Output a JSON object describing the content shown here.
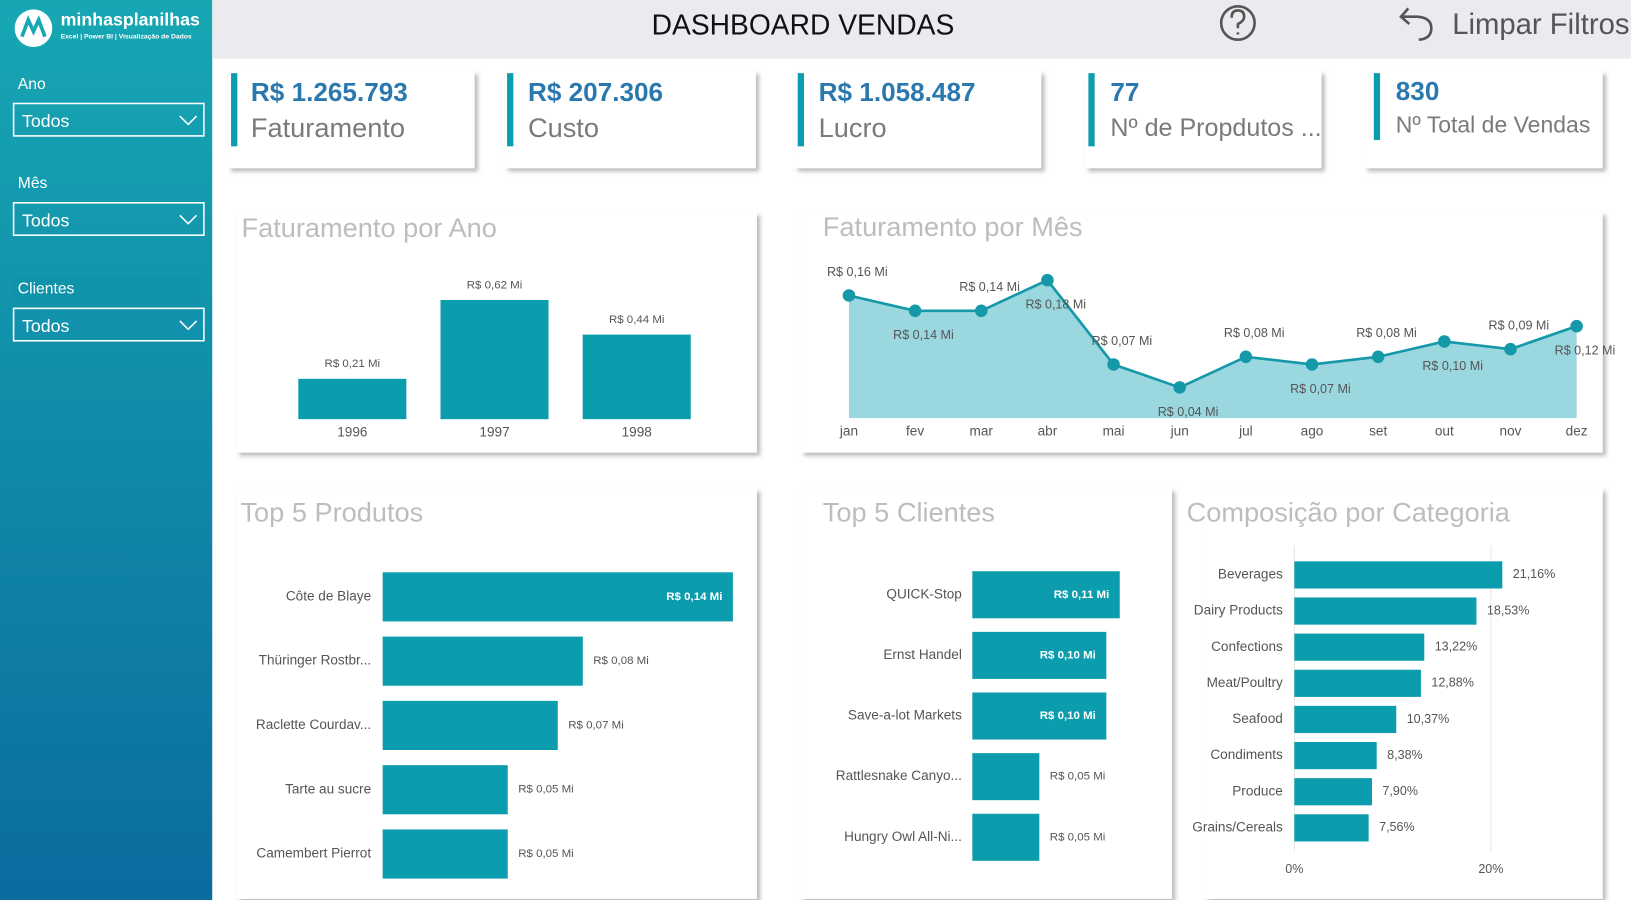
{
  "sidebar": {
    "logo": {
      "name": "minhasplanilhas",
      "tagline": "Excel | Power BI | Visualização de Dados"
    },
    "filters": [
      {
        "label": "Ano",
        "value": "Todos"
      },
      {
        "label": "Mês",
        "value": "Todos"
      },
      {
        "label": "Clientes",
        "value": "Todos"
      }
    ]
  },
  "header": {
    "title": "DASHBOARD VENDAS",
    "clear_filters": "Limpar Filtros"
  },
  "kpis": [
    {
      "value": "R$ 1.265.793",
      "label": "Faturamento"
    },
    {
      "value": "R$ 207.306",
      "label": "Custo"
    },
    {
      "value": "R$ 1.058.487",
      "label": "Lucro"
    },
    {
      "value": "77",
      "label": "Nº de Propdutos ..."
    },
    {
      "value": "830",
      "label": "Nº Total de Vendas"
    }
  ],
  "chart_data": [
    {
      "type": "bar",
      "title": "Faturamento por Ano",
      "categories": [
        "1996",
        "1997",
        "1998"
      ],
      "values": [
        0.21,
        0.62,
        0.44
      ],
      "value_labels": [
        "R$ 0,21 Mi",
        "R$ 0,62 Mi",
        "R$ 0,44 Mi"
      ],
      "color": "#0b9cad"
    },
    {
      "type": "area",
      "title": "Faturamento por Mês",
      "categories": [
        "jan",
        "fev",
        "mar",
        "abr",
        "mai",
        "jun",
        "jul",
        "ago",
        "set",
        "out",
        "nov",
        "dez"
      ],
      "values": [
        0.16,
        0.14,
        0.14,
        0.18,
        0.07,
        0.04,
        0.08,
        0.07,
        0.08,
        0.1,
        0.09,
        0.12
      ],
      "value_labels": [
        "R$ 0,16 Mi",
        "R$ 0,14 Mi",
        "R$ 0,14 Mi",
        "R$ 0,18 Mi",
        "R$ 0,07 Mi",
        "R$ 0,04 Mi",
        "R$ 0,08 Mi",
        "R$ 0,07 Mi",
        "R$ 0,08 Mi",
        "R$ 0,10 Mi",
        "R$ 0,09 Mi",
        "R$ 0,12 Mi"
      ],
      "color": "#1598a8",
      "area_color": "#9bd7df"
    },
    {
      "type": "hbar",
      "title": "Top 5 Produtos",
      "categories": [
        "Côte de Blaye",
        "Thüringer Rostbr...",
        "Raclette Courdav...",
        "Tarte au sucre",
        "Camembert Pierrot"
      ],
      "values": [
        0.14,
        0.08,
        0.07,
        0.05,
        0.05
      ],
      "value_labels": [
        "R$ 0,14 Mi",
        "R$ 0,08 Mi",
        "R$ 0,07 Mi",
        "R$ 0,05 Mi",
        "R$ 0,05 Mi"
      ],
      "color": "#0b9cad"
    },
    {
      "type": "hbar",
      "title": "Top 5 Clientes",
      "categories": [
        "QUICK-Stop",
        "Ernst Handel",
        "Save-a-lot Markets",
        "Rattlesnake Canyo...",
        "Hungry Owl All-Ni..."
      ],
      "values": [
        0.11,
        0.1,
        0.1,
        0.05,
        0.05
      ],
      "value_labels": [
        "R$ 0,11 Mi",
        "R$ 0,10 Mi",
        "R$ 0,10 Mi",
        "R$ 0,05 Mi",
        "R$ 0,05 Mi"
      ],
      "color": "#0b9cad"
    },
    {
      "type": "hbar",
      "title": "Composição por Categoria",
      "categories": [
        "Beverages",
        "Dairy Products",
        "Confections",
        "Meat/Poultry",
        "Seafood",
        "Condiments",
        "Produce",
        "Grains/Cereals"
      ],
      "values": [
        21.16,
        18.53,
        13.22,
        12.88,
        10.37,
        8.38,
        7.9,
        7.56
      ],
      "value_labels": [
        "21,16%",
        "18,53%",
        "13,22%",
        "12,88%",
        "10,37%",
        "8,38%",
        "7,90%",
        "7,56%"
      ],
      "xlim": [
        0,
        25
      ],
      "xticks": [
        {
          "value": 0,
          "label": "0%"
        },
        {
          "value": 20,
          "label": "20%"
        }
      ],
      "grid": true,
      "color": "#0b9cad"
    }
  ]
}
